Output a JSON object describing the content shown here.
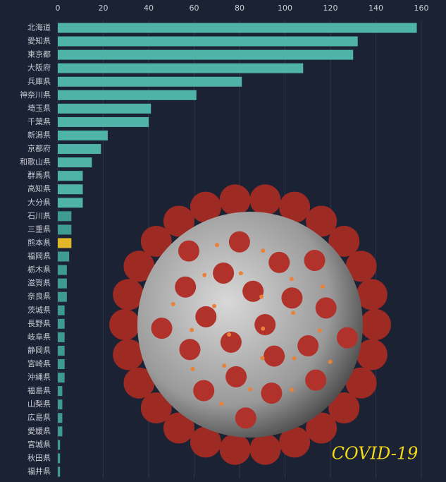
{
  "chart_data": {
    "type": "barh",
    "categories": [
      "北海道",
      "愛知県",
      "東京都",
      "大阪府",
      "兵庫県",
      "神奈川県",
      "埼玉県",
      "千葉県",
      "新潟県",
      "京都府",
      "和歌山県",
      "群馬県",
      "高知県",
      "大分県",
      "石川県",
      "三重県",
      "熊本県",
      "福岡県",
      "栃木県",
      "滋賀県",
      "奈良県",
      "茨城県",
      "長野県",
      "岐阜県",
      "静岡県",
      "宮崎県",
      "沖縄県",
      "福島県",
      "山梨県",
      "広島県",
      "愛媛県",
      "宮城県",
      "秋田県",
      "福井県"
    ],
    "values": [
      158,
      132,
      130,
      108,
      81,
      61,
      41,
      40,
      22,
      19,
      15,
      11,
      11,
      11,
      6,
      6,
      6,
      5,
      4,
      4,
      4,
      3,
      3,
      3,
      3,
      3,
      3,
      2,
      2,
      2,
      2,
      1,
      1,
      1
    ],
    "colors": [
      "#4fb3a9",
      "#4fb3a9",
      "#4fb3a9",
      "#4fb3a9",
      "#4fb3a9",
      "#4fb3a9",
      "#4fb3a9",
      "#4fb3a9",
      "#4fb3a9",
      "#4fb3a9",
      "#4fb3a9",
      "#4fb3a9",
      "#4fb3a9",
      "#4fb3a9",
      "#3e9a92",
      "#3e9a92",
      "#e2b82a",
      "#3e9a92",
      "#3e9a92",
      "#3e9a92",
      "#3e9a92",
      "#3e9a92",
      "#3e9a92",
      "#3e9a92",
      "#3e9a92",
      "#3e9a92",
      "#3e9a92",
      "#3e9a92",
      "#3e9a92",
      "#3e9a92",
      "#3e9a92",
      "#3e9a92",
      "#3e9a92",
      "#3e9a92"
    ],
    "xlim": [
      0,
      160
    ],
    "xticks": [
      0,
      20,
      40,
      60,
      80,
      100,
      120,
      140,
      160
    ],
    "grid": true,
    "annotation": "COVID-19"
  }
}
